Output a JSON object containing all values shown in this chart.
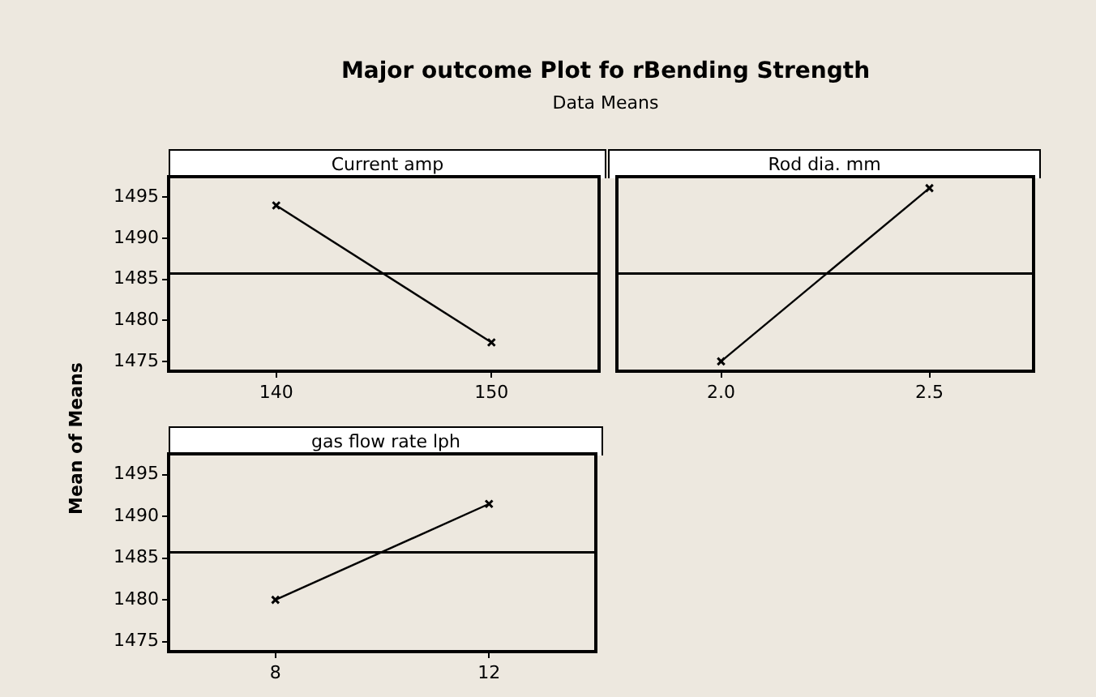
{
  "chart_data": [
    {
      "type": "other",
      "title": "Major outcome Plot fo rBending Strength",
      "subtitle": "Data Means",
      "ylabel": "Mean of Means"
    },
    {
      "type": "line",
      "title": "Current amp",
      "x": [
        140,
        150
      ],
      "series": [
        {
          "color": "#000000",
          "values": [
            1494.0,
            1477.3
          ]
        }
      ],
      "xlim": [
        135,
        155
      ],
      "xticks": [
        140,
        150
      ],
      "ylim": [
        1473.8,
        1497.5
      ],
      "yticks": [
        1475,
        1480,
        1485,
        1490,
        1495
      ],
      "ref_lines": [
        {
          "axis": "y",
          "value": 1485.7,
          "color": "#000000"
        }
      ],
      "marker": "cross"
    },
    {
      "type": "line",
      "title": "Rod dia. mm",
      "x": [
        2.0,
        2.5
      ],
      "series": [
        {
          "color": "#000000",
          "values": [
            1475.0,
            1496.1
          ]
        }
      ],
      "xlim": [
        1.75,
        2.75
      ],
      "xticks": [
        {
          "value": 2,
          "label": "2.0"
        },
        2.5
      ],
      "ylim": [
        1473.8,
        1497.5
      ],
      "yticks": [
        1475,
        1480,
        1485,
        1490,
        1495
      ],
      "tick_labels": "x",
      "ref_lines": [
        {
          "axis": "y",
          "value": 1485.7,
          "color": "#000000"
        }
      ],
      "marker": "cross"
    },
    {
      "type": "line",
      "title": "gas flow rate lph",
      "x": [
        8,
        12
      ],
      "series": [
        {
          "color": "#000000",
          "values": [
            1480.0,
            1491.5
          ]
        }
      ],
      "xlim": [
        6,
        14
      ],
      "xticks": [
        8,
        12
      ],
      "ylim": [
        1473.8,
        1497.5
      ],
      "yticks": [
        1475,
        1480,
        1485,
        1490,
        1495
      ],
      "ref_lines": [
        {
          "axis": "y",
          "value": 1485.7,
          "color": "#000000"
        }
      ],
      "marker": "cross"
    }
  ]
}
